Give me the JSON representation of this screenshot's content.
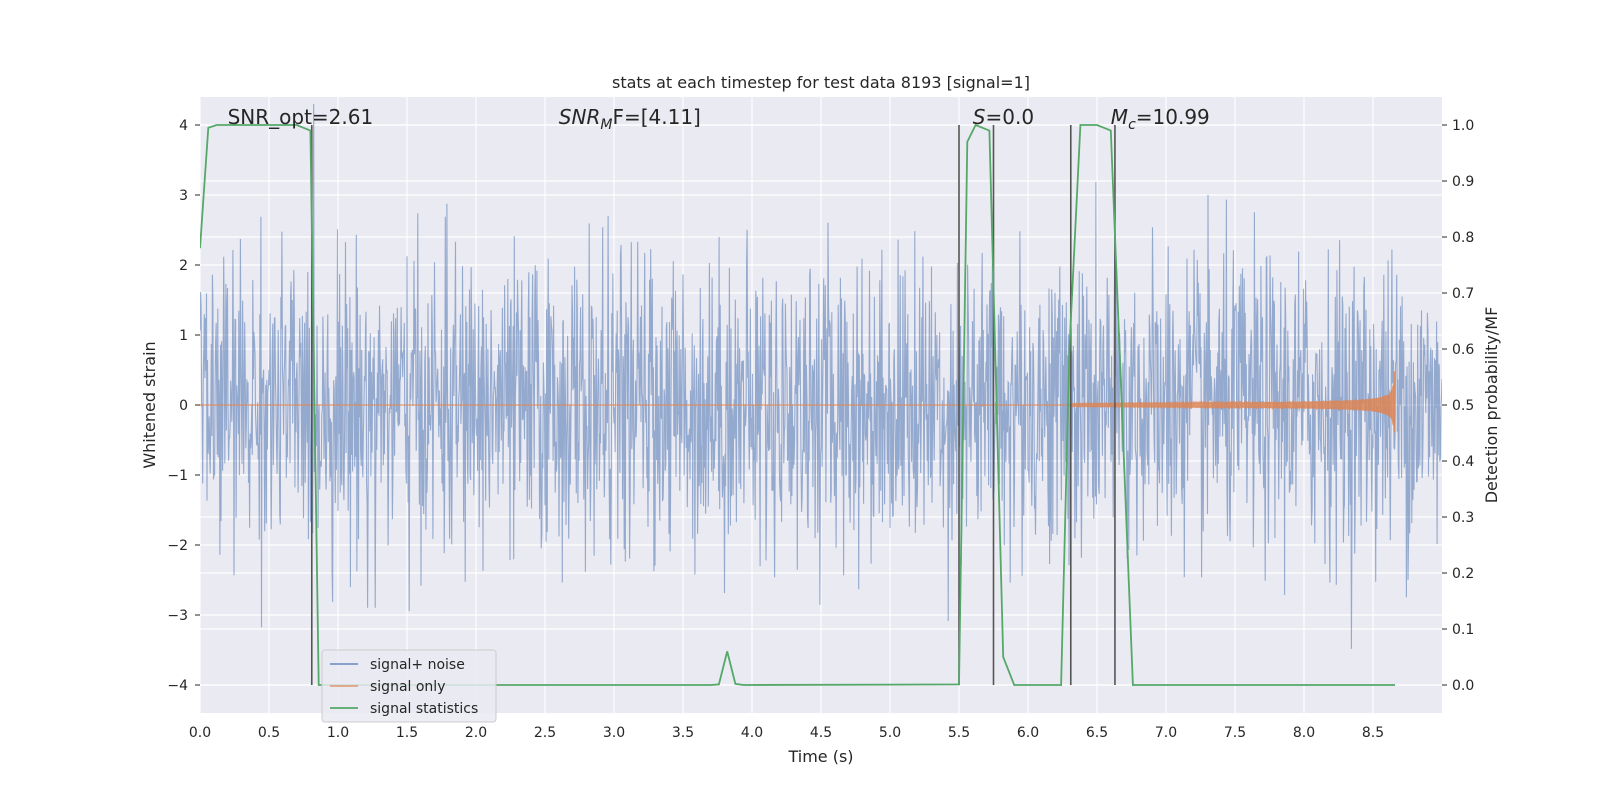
{
  "chart_data": {
    "type": "line",
    "title": "stats at each timestep for test data 8193 [signal=1]",
    "xlabel": "Time (s)",
    "ylabel_left": "Whitened strain",
    "ylabel_right": "Detection probability/MF",
    "xlim": [
      0.0,
      9.0
    ],
    "ylim_left": [
      -4.4,
      4.4
    ],
    "ylim_right": [
      -0.05,
      1.05
    ],
    "x_ticks": [
      "0.0",
      "0.5",
      "1.0",
      "1.5",
      "2.0",
      "2.5",
      "3.0",
      "3.5",
      "4.0",
      "4.5",
      "5.0",
      "5.5",
      "6.0",
      "6.5",
      "7.0",
      "7.5",
      "8.0",
      "8.5"
    ],
    "x_tick_values": [
      0.0,
      0.5,
      1.0,
      1.5,
      2.0,
      2.5,
      3.0,
      3.5,
      4.0,
      4.5,
      5.0,
      5.5,
      6.0,
      6.5,
      7.0,
      7.5,
      8.0,
      8.5
    ],
    "y_left_ticks": [
      "−4",
      "−3",
      "−2",
      "−1",
      "0",
      "1",
      "2",
      "3",
      "4"
    ],
    "y_left_tick_values": [
      -4,
      -3,
      -2,
      -1,
      0,
      1,
      2,
      3,
      4
    ],
    "y_right_ticks": [
      "0.0",
      "0.1",
      "0.2",
      "0.3",
      "0.4",
      "0.5",
      "0.6",
      "0.7",
      "0.8",
      "0.9",
      "1.0"
    ],
    "y_right_tick_values": [
      0.0,
      0.1,
      0.2,
      0.3,
      0.4,
      0.5,
      0.6,
      0.7,
      0.8,
      0.9,
      1.0
    ],
    "grid": true,
    "legend_position": "lower-left",
    "annotations": [
      {
        "text": "SNR_opt=2.61",
        "x": 0.2
      },
      {
        "text": "SNR",
        "sub": "M",
        "rest": "F=[4.11]",
        "x": 2.6,
        "italic": true
      },
      {
        "text": "S",
        "rest": "=0.0",
        "x": 5.6,
        "italic": true
      },
      {
        "text": "M",
        "sub": "c",
        "rest": "=10.99",
        "x": 6.6,
        "italic": true
      }
    ],
    "vertical_lines": [
      0.81,
      5.5,
      5.75,
      6.31,
      6.63
    ],
    "series": [
      {
        "name": "signal+ noise",
        "color": "#4c72b0",
        "axis": "left",
        "kind": "noise",
        "sample_rate": 256,
        "std": 1.05
      },
      {
        "name": "signal only",
        "color": "#dd8452",
        "axis": "left",
        "kind": "chirp",
        "chirp_start": 6.3,
        "chirp_end": 8.66,
        "peak_amp": 0.5
      },
      {
        "name": "signal statistics",
        "color": "#55a868",
        "axis": "right",
        "kind": "line",
        "points": [
          [
            0.0,
            0.78
          ],
          [
            0.06,
            0.995
          ],
          [
            0.12,
            1.0
          ],
          [
            0.7,
            1.0
          ],
          [
            0.8,
            0.99
          ],
          [
            0.86,
            0.0
          ],
          [
            3.7,
            0.0
          ],
          [
            3.76,
            0.001
          ],
          [
            3.82,
            0.06
          ],
          [
            3.88,
            0.002
          ],
          [
            3.94,
            0.0
          ],
          [
            5.5,
            0.001
          ],
          [
            5.56,
            0.97
          ],
          [
            5.62,
            1.0
          ],
          [
            5.72,
            0.99
          ],
          [
            5.82,
            0.05
          ],
          [
            5.9,
            0.0
          ],
          [
            6.24,
            0.0
          ],
          [
            6.3,
            0.6
          ],
          [
            6.38,
            1.0
          ],
          [
            6.5,
            1.0
          ],
          [
            6.6,
            0.99
          ],
          [
            6.76,
            0.0
          ],
          [
            8.66,
            0.0
          ]
        ]
      }
    ]
  }
}
